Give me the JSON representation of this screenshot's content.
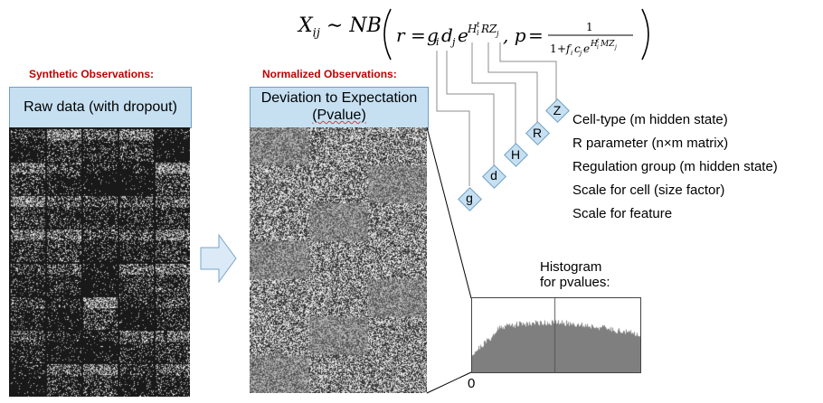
{
  "left": {
    "section_title": "Synthetic Observations:",
    "box_label": "Raw data (with dropout)"
  },
  "middle": {
    "section_title": "Normalized Observations:",
    "box_line1": "Deviation to Expectation",
    "box_line2": "(Pvalue)"
  },
  "formula": {
    "lhs": "X",
    "lhs_sub": "ij",
    "tilde": "∼",
    "dist": "NB",
    "r_part": "r = g",
    "p_part": ", p ="
  },
  "variables": [
    {
      "symbol": "Z",
      "meaning": "Cell-type (m hidden state)"
    },
    {
      "symbol": "R",
      "meaning": "R parameter (n×m matrix)"
    },
    {
      "symbol": "H",
      "meaning": "Regulation group (m hidden state)"
    },
    {
      "symbol": "d",
      "meaning": "Scale for cell (size factor)"
    },
    {
      "symbol": "g",
      "meaning": "Scale for feature"
    }
  ],
  "histogram": {
    "caption_line1": "Histogram",
    "caption_line2": "for pvalues:",
    "axis_zero": "0"
  },
  "colors": {
    "box_fill": "#c6e0f2",
    "title_red": "#c00000",
    "hist_fill": "#7f7f7f"
  }
}
